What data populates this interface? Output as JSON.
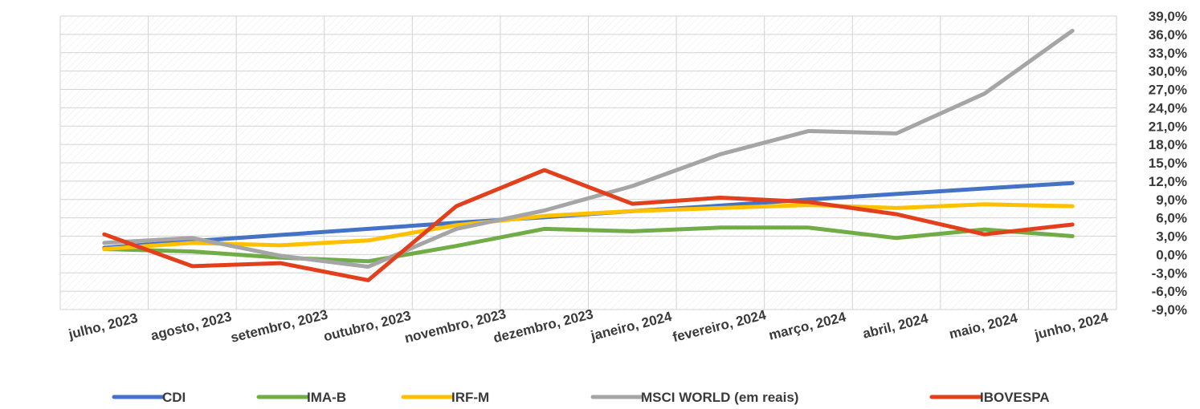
{
  "chart_data": {
    "type": "line",
    "categories": [
      "julho, 2023",
      "agosto, 2023",
      "setembro, 2023",
      "outubro, 2023",
      "novembro, 2023",
      "dezembro, 2023",
      "janeiro, 2024",
      "fevereiro, 2024",
      "março, 2024",
      "abril, 2024",
      "maio, 2024",
      "junho, 2024"
    ],
    "y_tick_labels": [
      "39,0%",
      "36,0%",
      "33,0%",
      "30,0%",
      "27,0%",
      "24,0%",
      "21,0%",
      "18,0%",
      "15,0%",
      "12,0%",
      "9,0%",
      "6,0%",
      "3,0%",
      "0,0%",
      "-3,0%",
      "-6,0%",
      "-9,0%"
    ],
    "ylim": [
      -9,
      39
    ],
    "y_step": 3,
    "y_axis_position": "right",
    "grid": true,
    "legend_position": "bottom",
    "series": [
      {
        "name": "CDI",
        "color": "#4472C4",
        "values": [
          1.1,
          2.2,
          3.2,
          4.2,
          5.2,
          6.1,
          7.1,
          8.0,
          9.0,
          9.9,
          10.8,
          11.7
        ]
      },
      {
        "name": "IMA-B",
        "color": "#70AD47",
        "values": [
          0.9,
          0.5,
          -0.5,
          -1.1,
          1.4,
          4.2,
          3.8,
          4.4,
          4.4,
          2.7,
          4.1,
          3.0
        ]
      },
      {
        "name": "IRF-M",
        "color": "#FFC000",
        "values": [
          0.9,
          1.9,
          1.5,
          2.3,
          4.8,
          6.3,
          7.1,
          7.6,
          8.1,
          7.6,
          8.2,
          7.9
        ]
      },
      {
        "name": "MSCI WORLD (em reais)",
        "color": "#A5A5A5",
        "values": [
          1.9,
          2.7,
          -0.2,
          -2.0,
          4.2,
          7.2,
          11.2,
          16.4,
          20.2,
          19.8,
          26.3,
          36.6
        ]
      },
      {
        "name": "IBOVESPA",
        "color": "#E2401C",
        "values": [
          3.3,
          -1.9,
          -1.4,
          -4.2,
          7.9,
          13.8,
          8.3,
          9.3,
          8.6,
          6.6,
          3.3,
          4.9
        ]
      }
    ]
  }
}
